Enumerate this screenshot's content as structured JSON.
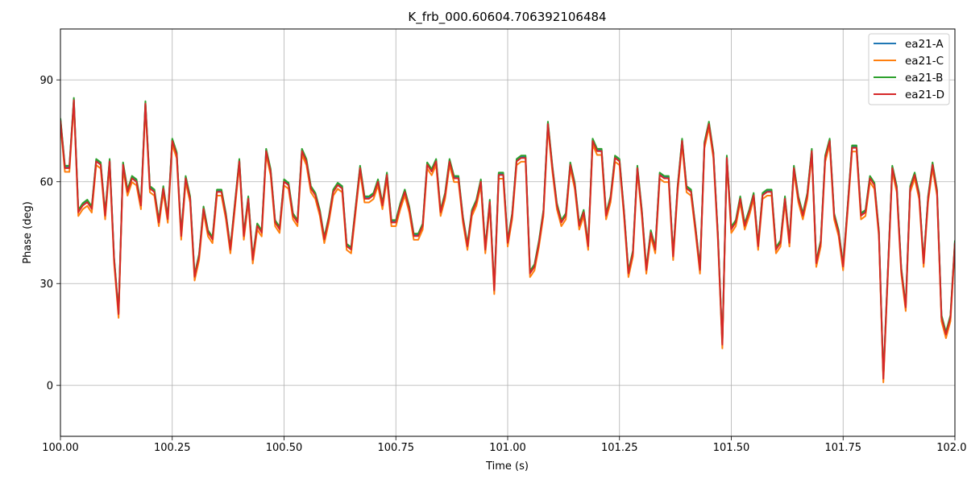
{
  "chart_data": {
    "type": "line",
    "title": "K_frb_000.60604.706392106484",
    "xlabel": "Time (s)",
    "ylabel": "Phase (deg)",
    "xlim": [
      100.0,
      102.0
    ],
    "ylim": [
      -15,
      105
    ],
    "xticks": [
      100.0,
      100.25,
      100.5,
      100.75,
      101.0,
      101.25,
      101.5,
      101.75,
      102.0
    ],
    "xtick_labels": [
      "100.00",
      "100.25",
      "100.50",
      "100.75",
      "101.00",
      "101.25",
      "101.50",
      "101.75",
      "102.00"
    ],
    "yticks": [
      0,
      30,
      60,
      90
    ],
    "ytick_labels": [
      "0",
      "30",
      "60",
      "90"
    ],
    "grid": true,
    "legend_position": "top-right",
    "x_start": 100.0,
    "x_step": 0.01,
    "base_values": [
      78,
      64,
      64,
      84,
      51,
      53,
      54,
      52,
      66,
      65,
      50,
      66,
      37,
      21,
      65,
      57,
      61,
      60,
      53,
      83,
      58,
      57,
      48,
      58,
      49,
      72,
      68,
      44,
      61,
      55,
      32,
      38,
      52,
      45,
      43,
      57,
      57,
      50,
      40,
      53,
      66,
      44,
      55,
      37,
      47,
      45,
      69,
      63,
      48,
      46,
      60,
      59,
      50,
      48,
      69,
      66,
      58,
      56,
      51,
      43,
      49,
      57,
      59,
      58,
      41,
      40,
      52,
      64,
      55,
      55,
      56,
      60,
      53,
      62,
      48,
      48,
      53,
      57,
      52,
      44,
      44,
      47,
      65,
      63,
      66,
      51,
      56,
      66,
      61,
      61,
      49,
      41,
      51,
      54,
      60,
      40,
      54,
      28,
      62,
      62,
      42,
      50,
      66,
      67,
      67,
      33,
      35,
      42,
      51,
      77,
      64,
      53,
      48,
      50,
      65,
      59,
      47,
      51,
      41,
      72,
      69,
      69,
      50,
      55,
      67,
      66,
      51,
      33,
      39,
      64,
      51,
      34,
      45,
      40,
      62,
      61,
      61,
      38,
      58,
      72,
      58,
      57,
      46,
      34,
      71,
      77,
      68,
      44,
      12,
      67,
      46,
      48,
      55,
      47,
      51,
      56,
      41,
      56,
      57,
      57,
      40,
      42,
      55,
      42,
      64,
      55,
      50,
      56,
      69,
      36,
      42,
      67,
      72,
      50,
      45,
      35,
      52,
      70,
      70,
      50,
      51,
      61,
      59,
      45,
      2,
      33,
      64,
      58,
      34,
      23,
      58,
      62,
      56,
      36,
      55,
      65,
      57,
      20,
      15,
      20,
      42
    ],
    "series": [
      {
        "name": "ea21-A",
        "color": "#1f77b4",
        "offset": 0.3
      },
      {
        "name": "ea21-C",
        "color": "#ff7f0e",
        "offset": -1.1
      },
      {
        "name": "ea21-B",
        "color": "#2ca02c",
        "offset": 0.7
      },
      {
        "name": "ea21-D",
        "color": "#d62728",
        "offset": 0.0
      }
    ]
  }
}
